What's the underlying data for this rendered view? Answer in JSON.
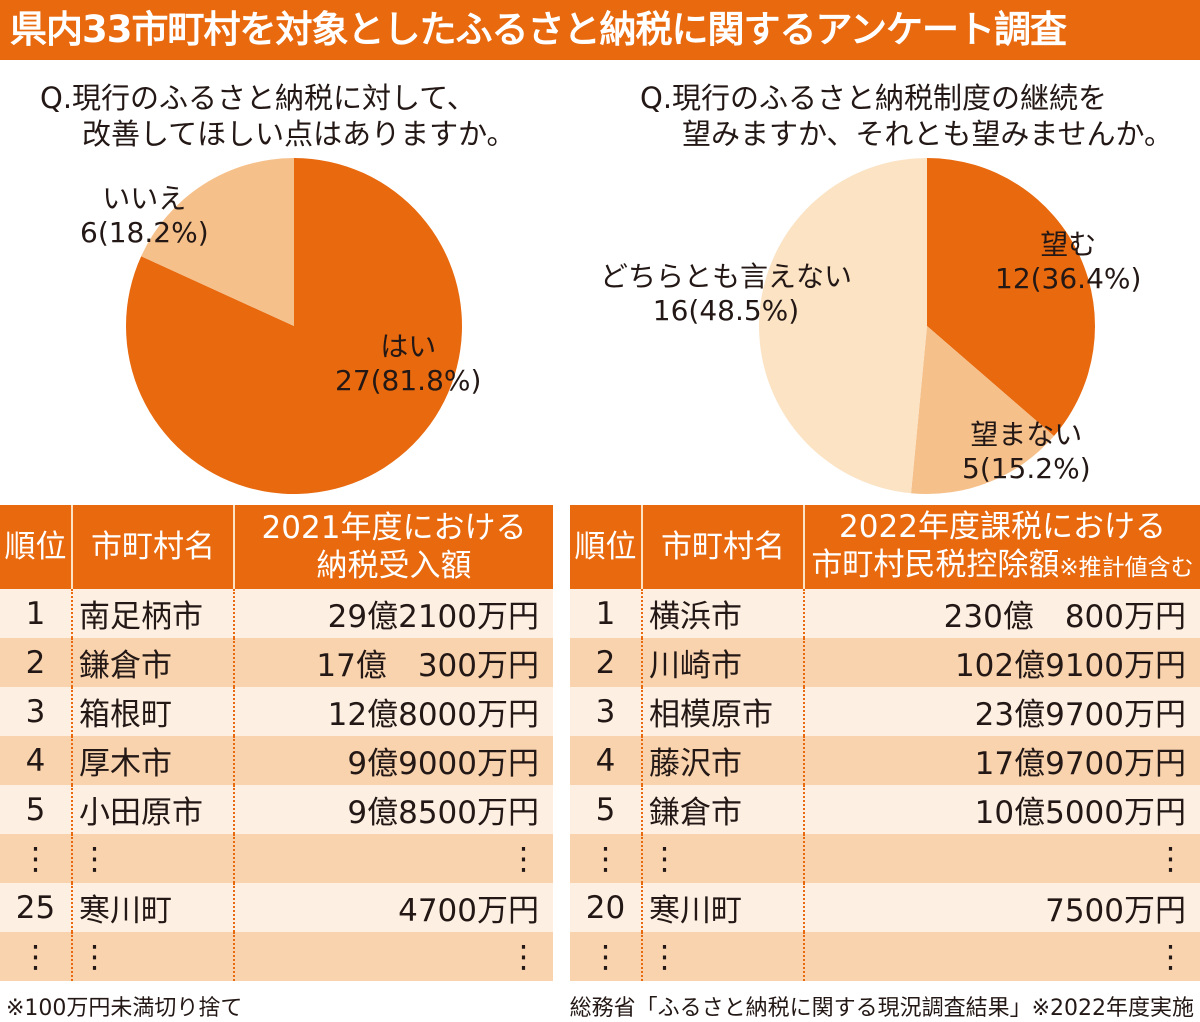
{
  "title": "県内33市町村を対象としたふるさと納税に関するアンケート調査",
  "colors": {
    "accent": "#e8690e",
    "mid": "#f6c08a",
    "light": "#fbe3c4",
    "row_light": "#fdf0e3",
    "row_dark": "#f8d3ae"
  },
  "chart_data": [
    {
      "type": "pie",
      "title_line1": "Q.現行のふるさと納税に対して、",
      "title_line2": "改善してほしい点はありますか。",
      "slices": [
        {
          "label": "はい",
          "count": 27,
          "percent": 81.8,
          "text": "27(81.8%)",
          "color": "#e8690e"
        },
        {
          "label": "いいえ",
          "count": 6,
          "percent": 18.2,
          "text": "6(18.2%)",
          "color": "#f6c08a"
        }
      ]
    },
    {
      "type": "pie",
      "title_line1": "Q.現行のふるさと納税制度の継続を",
      "title_line2": "望みますか、それとも望みませんか。",
      "slices": [
        {
          "label": "望む",
          "count": 12,
          "percent": 36.4,
          "text": "12(36.4%)",
          "color": "#e8690e"
        },
        {
          "label": "望まない",
          "count": 5,
          "percent": 15.2,
          "text": "5(15.2%)",
          "color": "#f6c08a"
        },
        {
          "label": "どちらとも言えない",
          "count": 16,
          "percent": 48.5,
          "text": "16(48.5%)",
          "color": "#fbe3c4"
        }
      ]
    }
  ],
  "table1": {
    "headers": [
      "順位",
      "市町村名",
      "2021年度における",
      "納税受入額"
    ],
    "rows": [
      [
        "1",
        "南足柄市",
        "29億2100万円"
      ],
      [
        "2",
        "鎌倉市",
        "17億　300万円"
      ],
      [
        "3",
        "箱根町",
        "12億8000万円"
      ],
      [
        "4",
        "厚木市",
        "9億9000万円"
      ],
      [
        "5",
        "小田原市",
        "9億8500万円"
      ],
      [
        "⋮",
        "⋮",
        "⋮"
      ],
      [
        "25",
        "寒川町",
        "4700万円"
      ],
      [
        "⋮",
        "⋮",
        "⋮"
      ]
    ]
  },
  "table2": {
    "headers": [
      "順位",
      "市町村名",
      "2022年度課税における",
      "市町村民税控除額",
      "※推計値含む"
    ],
    "rows": [
      [
        "1",
        "横浜市",
        "230億　800万円"
      ],
      [
        "2",
        "川崎市",
        "102億9100万円"
      ],
      [
        "3",
        "相模原市",
        "23億9700万円"
      ],
      [
        "4",
        "藤沢市",
        "17億9700万円"
      ],
      [
        "5",
        "鎌倉市",
        "10億5000万円"
      ],
      [
        "⋮",
        "⋮",
        "⋮"
      ],
      [
        "20",
        "寒川町",
        "7500万円"
      ],
      [
        "⋮",
        "⋮",
        "⋮"
      ]
    ]
  },
  "notes": {
    "left": "※100万円未満切り捨て",
    "right": "総務省「ふるさと納税に関する現況調査結果」※2022年度実施"
  }
}
